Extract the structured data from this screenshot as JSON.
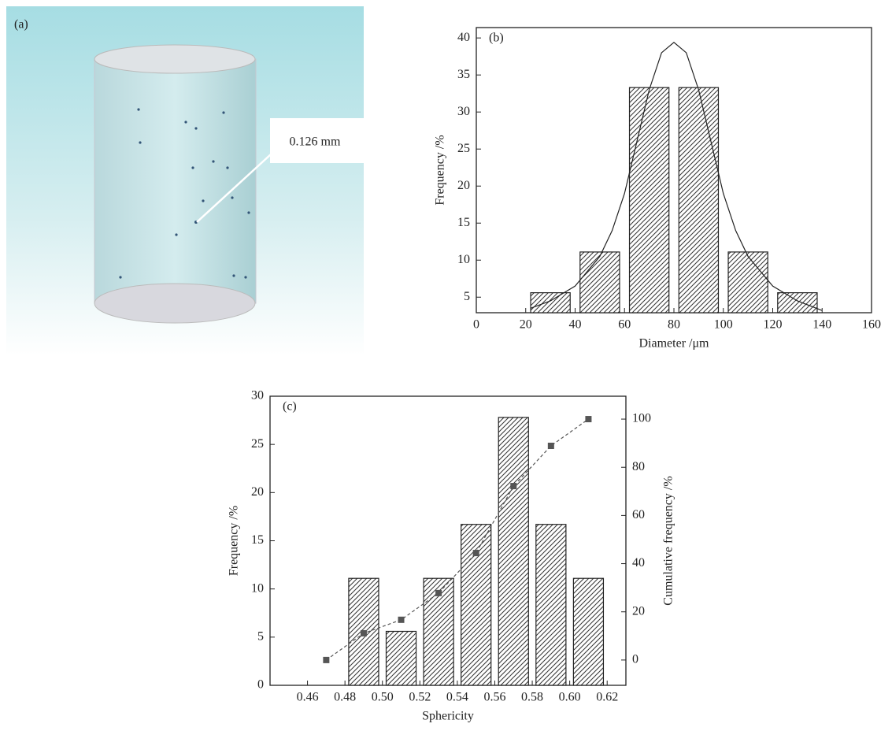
{
  "chart_data": [
    {
      "type": "image",
      "label": "(a)",
      "annotation": "0.126 mm"
    },
    {
      "type": "histogram",
      "label": "(b)",
      "x_label": "Diameter /μm",
      "y_label": "Frequency /%",
      "bins": [
        20,
        40,
        60,
        80,
        100,
        120,
        140
      ],
      "values": [
        5.6,
        11.1,
        33.3,
        33.3,
        11.1,
        5.6
      ],
      "fit": {
        "x": [
          22,
          30,
          40,
          50,
          55,
          60,
          65,
          70,
          75,
          80,
          85,
          90,
          95,
          100,
          105,
          110,
          120,
          130,
          140
        ],
        "values": [
          3.5,
          4.5,
          6.5,
          10.5,
          14,
          19,
          26,
          33,
          38,
          39.4,
          38,
          33,
          26,
          19,
          14,
          10.5,
          6.5,
          4.5,
          3.2
        ]
      },
      "xlim": [
        0,
        160
      ],
      "xticks": [
        0,
        20,
        40,
        60,
        80,
        100,
        120,
        140,
        160
      ],
      "ylim": [
        2.9,
        41.4
      ],
      "yticks": [
        5,
        10,
        15,
        20,
        25,
        30,
        35,
        40
      ],
      "color": "#222"
    },
    {
      "type": "histogram",
      "label": "(c)",
      "x_label": "Sphericity",
      "y_label": "Frequency /%",
      "y2_label": "Cumulative frequency /%",
      "bins": [
        0.48,
        0.5,
        0.52,
        0.54,
        0.56,
        0.58,
        0.6,
        0.62
      ],
      "values": [
        11.1,
        5.6,
        11.1,
        16.7,
        27.8,
        16.7,
        11.1
      ],
      "cumulative": {
        "x": [
          0.47,
          0.49,
          0.51,
          0.53,
          0.55,
          0.57,
          0.59,
          0.61
        ],
        "values": [
          0,
          11.1,
          16.7,
          27.8,
          44.4,
          72.2,
          88.9,
          100
        ],
        "axis": "y2",
        "color": "#555"
      },
      "xlim": [
        0.44,
        0.63
      ],
      "xticks": [
        0.46,
        0.48,
        {
          "value": 0.5,
          "label": "0.50"
        },
        0.52,
        0.54,
        0.56,
        0.58,
        {
          "value": 0.6,
          "label": "0.60"
        },
        0.62
      ],
      "ylim": [
        0,
        30
      ],
      "yticks": [
        0,
        5,
        10,
        15,
        20,
        25,
        30
      ],
      "y2lim": [
        -10.5,
        109.5
      ],
      "y2ticks": [
        0,
        20,
        40,
        60,
        80,
        100
      ],
      "color": "#222"
    }
  ]
}
